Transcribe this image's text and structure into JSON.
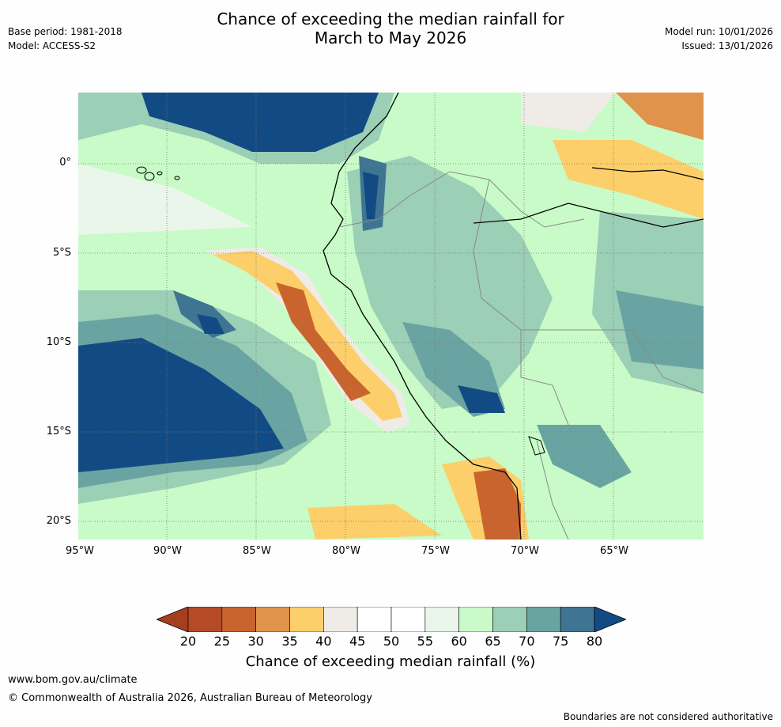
{
  "header": {
    "title_line1": "Chance of exceeding the median rainfall for",
    "title_line2": "March to May 2026",
    "base_period": "Base period: 1981-2018",
    "model": "Model: ACCESS-S2",
    "model_run": "Model run: 10/01/2026",
    "issued": "Issued: 13/01/2026"
  },
  "map": {
    "lon_ticks": [
      "95°W",
      "90°W",
      "85°W",
      "80°W",
      "75°W",
      "70°W",
      "65°W"
    ],
    "lat_ticks": [
      "0°",
      "5°S",
      "10°S",
      "15°S",
      "20°S"
    ],
    "region": "Western South America and eastern tropical Pacific"
  },
  "legend": {
    "ticks": [
      "20",
      "25",
      "30",
      "35",
      "40",
      "45",
      "50",
      "55",
      "60",
      "65",
      "70",
      "75",
      "80"
    ],
    "colors": [
      "#a53f1f",
      "#b54a26",
      "#c9642e",
      "#e0934a",
      "#fccf6a",
      "#efebe6",
      "#ffffff",
      "#ffffff",
      "#e9f6e9",
      "#c8fbc8",
      "#9bcfb6",
      "#6aa4a2",
      "#3f7592",
      "#124b84"
    ],
    "label": "Chance of exceeding median rainfall (%)"
  },
  "footer": {
    "url": "www.bom.gov.au/climate",
    "copyright": "© Commonwealth of Australia 2026, Australian Bureau of Meteorology",
    "disclaimer": "Boundaries are not considered authoritative"
  }
}
